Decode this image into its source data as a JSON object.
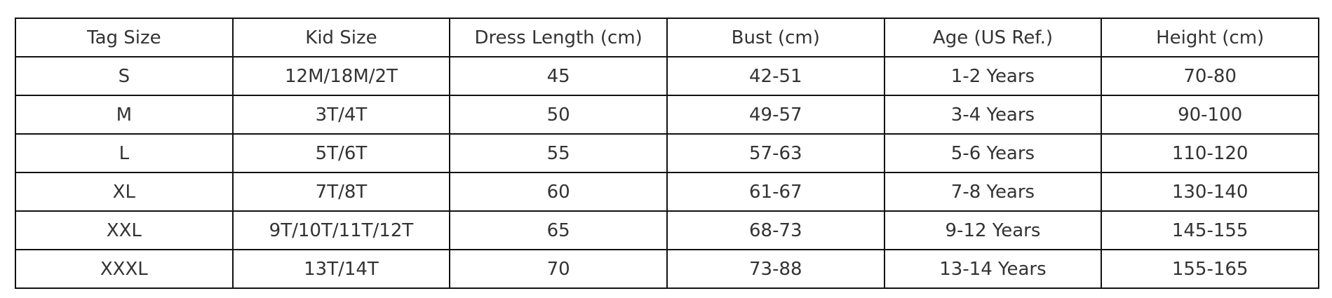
{
  "table": {
    "header": [
      "Tag Size",
      "Kid Size",
      "Dress Length (cm)",
      "Bust (cm)",
      "Age (US Ref.)",
      "Height (cm)"
    ],
    "rows": [
      [
        "S",
        "12M/18M/2T",
        45,
        "42-51",
        "1-2 Years",
        "70-80"
      ],
      [
        "M",
        "3T/4T",
        50,
        "49-57",
        "3-4 Years",
        "90-100"
      ],
      [
        "L",
        "5T/6T",
        55,
        "57-63",
        "5-6 Years",
        "110-120"
      ],
      [
        "XL",
        "7T/8T",
        60,
        "61-67",
        "7-8 Years",
        "130-140"
      ],
      [
        "XXL",
        "9T/10T/11T/12T",
        65,
        "68-73",
        "9-12 Years",
        "145-155"
      ],
      [
        "XXXL",
        "13T/14T",
        70,
        "73-88",
        "13-14 Years",
        "155-165"
      ]
    ]
  }
}
